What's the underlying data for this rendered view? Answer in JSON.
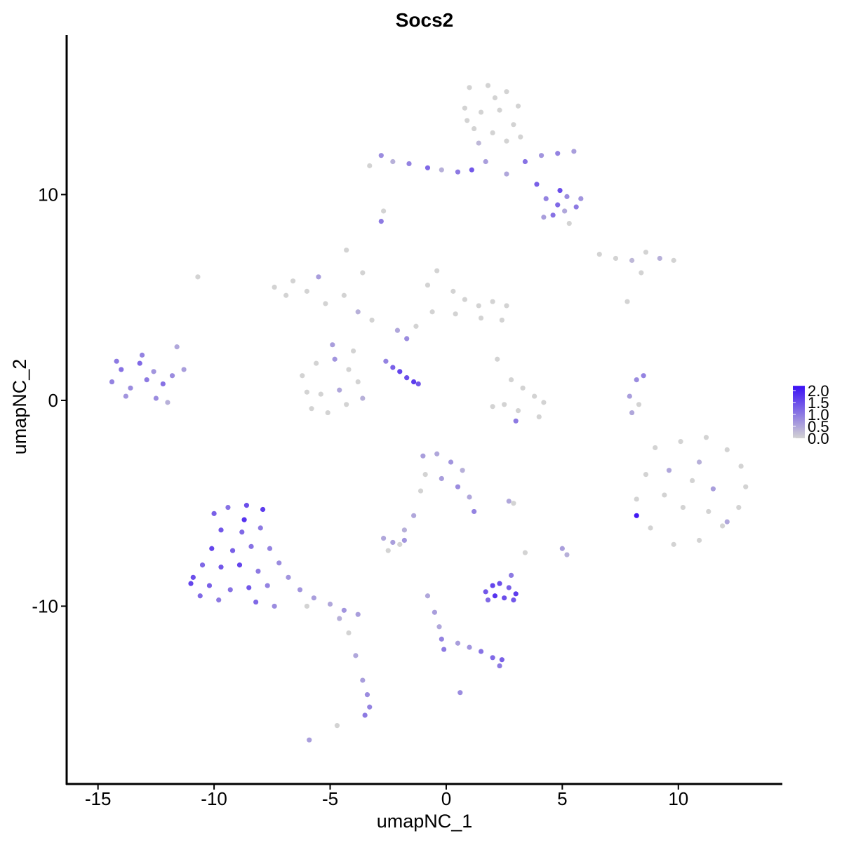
{
  "chart_data": {
    "type": "scatter",
    "title": "Socs2",
    "x_label": "umapNC_1",
    "y_label": "umapNC_2",
    "xlim": [
      -16.35,
      14.48
    ],
    "ylim": [
      -18.64,
      17.75
    ],
    "xticks": [
      -15,
      -10,
      -5,
      0,
      5,
      10
    ],
    "yticks": [
      -10,
      0,
      10
    ],
    "color_low": "#d3d3d3",
    "color_high": "#3a10f5",
    "colorbar_lim": [
      0,
      2.2
    ],
    "colorbar_ticks": [
      {
        "value": 0,
        "label": "0.0"
      },
      {
        "value": 0.5,
        "label": "0.5"
      },
      {
        "value": 1,
        "label": "1.0"
      },
      {
        "value": 1.5,
        "label": "1.5"
      },
      {
        "value": 2,
        "label": "2.0"
      }
    ],
    "x": [
      1.0,
      1.8,
      2.6,
      3.1,
      0.8,
      1.5,
      2.3,
      2.9,
      1.2,
      2.0,
      1.4,
      2.6,
      3.2,
      0.9,
      2.1,
      -3.3,
      -2.8,
      -2.3,
      -1.6,
      -0.8,
      -0.2,
      0.5,
      1.1,
      1.7,
      2.6,
      3.4,
      4.1,
      4.8,
      5.5,
      3.9,
      4.3,
      4.8,
      5.2,
      5.6,
      5.8,
      4.6,
      5.1,
      5.3,
      4.2,
      4.9,
      -2.8,
      -2.7,
      6.6,
      7.3,
      8.0,
      8.6,
      9.2,
      9.8,
      8.4,
      7.8,
      -0.8,
      -0.4,
      0.3,
      0.8,
      1.4,
      2.0,
      2.6,
      2.4,
      1.5,
      0.4,
      -0.6,
      -1.3,
      -2.1,
      -3.2,
      -3.8,
      -3.6,
      -4.4,
      -5.2,
      -6.0,
      -6.6,
      -5.5,
      -7.4,
      -4.3,
      -6.9,
      -1.7,
      -6.2,
      -5.6,
      -4.8,
      -4.2,
      -3.8,
      -4.6,
      -5.4,
      -6.0,
      -5.1,
      -4.3,
      -3.6,
      -5.8,
      -4.9,
      -4.0,
      -2.6,
      -2.3,
      -2.0,
      -1.7,
      -1.4,
      -1.2,
      -14.4,
      -14.0,
      -13.6,
      -13.2,
      -12.9,
      -12.6,
      -12.2,
      -11.8,
      -11.3,
      -11.6,
      -13.1,
      -13.8,
      -12.5,
      -12.0,
      -14.2,
      -10.7,
      2.2,
      2.8,
      3.3,
      3.8,
      3.1,
      2.5,
      2.0,
      4.0,
      3.0,
      4.2,
      8.2,
      7.9,
      8.0,
      8.3,
      8.5,
      9.0,
      10.1,
      11.2,
      12.1,
      12.7,
      12.9,
      12.6,
      11.9,
      10.9,
      9.8,
      8.8,
      8.2,
      8.6,
      9.6,
      10.6,
      11.5,
      10.2,
      11.3,
      9.4,
      8.2,
      10.9,
      12.1,
      -10.0,
      -9.4,
      -8.6,
      -7.9,
      -9.7,
      -8.8,
      -8.0,
      -10.1,
      -9.2,
      -8.4,
      -7.6,
      -10.5,
      -9.7,
      -8.9,
      -8.1,
      -7.2,
      -10.9,
      -10.2,
      -9.3,
      -8.5,
      -7.7,
      -6.8,
      -10.6,
      -9.8,
      -8.2,
      -7.4,
      -6.3,
      -5.7,
      -5.0,
      -4.4,
      -3.8,
      -4.6,
      -6.0,
      -11.0,
      -8.7,
      -4.2,
      -3.9,
      -3.6,
      -3.4,
      -3.3,
      -3.5,
      -4.7,
      -5.9,
      -1.0,
      -0.4,
      0.2,
      0.7,
      -0.9,
      -0.2,
      0.5,
      1.0,
      1.2,
      -1.1,
      -1.4,
      -1.8,
      -2.7,
      -2.3,
      -2.0,
      -1.8,
      -2.5,
      2.7,
      2.9,
      5.0,
      5.2,
      3.4,
      1.7,
      2.0,
      2.3,
      2.7,
      3.0,
      2.5,
      2.1,
      1.8,
      2.9,
      2.8,
      -0.8,
      -0.5,
      -0.3,
      -0.2,
      -0.1,
      0.5,
      1.0,
      1.5,
      2.0,
      2.4,
      2.3,
      0.6
    ],
    "y": [
      15.2,
      15.3,
      15.0,
      14.3,
      14.2,
      14.0,
      14.1,
      13.4,
      13.2,
      13.0,
      12.5,
      12.6,
      12.8,
      13.6,
      14.7,
      11.4,
      11.9,
      11.6,
      11.5,
      11.3,
      11.2,
      11.1,
      11.2,
      11.6,
      11.0,
      11.6,
      11.9,
      12.0,
      12.1,
      10.5,
      9.8,
      9.5,
      9.9,
      9.4,
      9.8,
      9.0,
      9.2,
      8.6,
      8.9,
      10.2,
      8.7,
      9.2,
      7.1,
      6.9,
      6.8,
      7.2,
      6.9,
      6.8,
      6.2,
      4.8,
      5.6,
      6.3,
      5.3,
      4.9,
      4.6,
      4.8,
      4.6,
      3.9,
      4.0,
      4.2,
      4.3,
      3.6,
      3.4,
      3.9,
      4.3,
      6.2,
      5.1,
      4.7,
      5.3,
      5.8,
      6.0,
      5.5,
      7.3,
      5.1,
      3.0,
      1.2,
      1.8,
      2.0,
      1.5,
      0.9,
      0.5,
      0.3,
      0.4,
      -0.6,
      -0.2,
      0.1,
      -0.4,
      2.7,
      2.4,
      1.9,
      1.6,
      1.4,
      1.1,
      0.9,
      0.8,
      0.9,
      1.5,
      0.6,
      1.8,
      1.0,
      1.4,
      0.8,
      1.2,
      1.5,
      2.6,
      2.2,
      0.2,
      0.1,
      -0.1,
      1.9,
      6.0,
      2.0,
      1.0,
      0.6,
      0.2,
      -0.5,
      -0.2,
      -0.3,
      -0.8,
      -1.0,
      -0.1,
      1.0,
      0.2,
      -0.6,
      -0.2,
      1.2,
      -2.3,
      -2.0,
      -1.8,
      -2.4,
      -3.2,
      -4.2,
      -5.2,
      -6.1,
      -6.8,
      -7.0,
      -6.2,
      -4.8,
      -3.6,
      -3.4,
      -3.9,
      -4.3,
      -5.2,
      -5.4,
      -4.6,
      -5.6,
      -3.0,
      -5.9,
      -5.5,
      -5.2,
      -5.1,
      -5.3,
      -6.3,
      -6.4,
      -6.2,
      -7.2,
      -7.3,
      -7.1,
      -7.2,
      -8.0,
      -8.1,
      -8.0,
      -8.3,
      -7.9,
      -8.6,
      -9.0,
      -9.2,
      -9.1,
      -9.0,
      -8.6,
      -9.5,
      -9.7,
      -9.8,
      -10.0,
      -9.2,
      -9.6,
      -9.9,
      -10.2,
      -10.4,
      -10.6,
      -10.0,
      -8.9,
      -5.8,
      -11.3,
      -12.4,
      -13.6,
      -14.3,
      -14.9,
      -15.3,
      -15.8,
      -16.5,
      -2.7,
      -2.6,
      -3.0,
      -3.4,
      -3.6,
      -3.8,
      -4.2,
      -4.7,
      -5.4,
      -4.4,
      -5.6,
      -6.3,
      -6.7,
      -6.9,
      -7.0,
      -6.8,
      -7.3,
      -4.9,
      -5.0,
      -7.2,
      -7.5,
      -7.4,
      -9.3,
      -9.0,
      -8.9,
      -9.1,
      -9.4,
      -9.6,
      -9.5,
      -9.7,
      -9.7,
      -8.5,
      -9.5,
      -10.3,
      -11.0,
      -11.6,
      -12.1,
      -11.8,
      -12.0,
      -12.2,
      -12.5,
      -12.6,
      -12.9,
      -14.2
    ],
    "values": [
      0,
      0,
      0,
      0,
      0,
      0,
      0,
      0,
      0,
      0,
      0.3,
      0,
      0,
      0,
      0,
      0,
      0.8,
      0.4,
      0.9,
      1.2,
      0.4,
      1.0,
      1.4,
      0.6,
      0.5,
      1.1,
      0.7,
      0.9,
      0.6,
      1.3,
      0.9,
      1.2,
      0.8,
      1.0,
      0.7,
      1.1,
      0.5,
      0,
      0.6,
      1.5,
      1.0,
      0,
      0,
      0,
      0.3,
      0,
      0.4,
      0,
      0,
      0,
      0,
      0,
      0,
      0,
      0,
      0,
      0,
      0,
      0,
      0,
      0,
      0,
      0.5,
      0,
      0.4,
      0,
      0,
      0,
      0,
      0,
      0.6,
      0,
      0,
      0,
      0.8,
      0,
      0,
      0.7,
      0,
      0,
      0.5,
      0,
      0,
      0,
      0,
      0.4,
      0,
      0.6,
      0,
      0.9,
      1.3,
      1.6,
      1.5,
      1.7,
      1.4,
      0.9,
      1.1,
      0.8,
      1.2,
      1.0,
      0.7,
      1.1,
      0.8,
      0.6,
      0.5,
      0.9,
      0.7,
      0.8,
      0.4,
      1.0,
      0,
      0,
      0,
      0,
      0,
      0,
      0,
      0,
      0,
      1.0,
      0,
      0.8,
      0.6,
      0.5,
      0,
      0.9,
      0,
      0,
      0,
      0,
      0,
      0,
      0,
      0,
      0,
      0,
      0,
      0,
      0,
      0.5,
      0,
      0.6,
      0,
      0,
      0,
      2.1,
      0.4,
      0.5,
      1.3,
      1.1,
      1.5,
      1.7,
      1.4,
      1.2,
      1.0,
      1.6,
      1.3,
      1.1,
      0.9,
      1.2,
      1.4,
      1.6,
      1.0,
      0.8,
      1.5,
      1.3,
      1.1,
      1.4,
      0.9,
      0.7,
      1.2,
      1.0,
      1.2,
      0.8,
      0.7,
      0.6,
      0.5,
      0.7,
      0.6,
      0.4,
      0,
      1.6,
      1.8,
      0,
      0.5,
      0.6,
      0.8,
      0.9,
      1.0,
      0,
      0.6,
      0.6,
      0.5,
      0.7,
      0.4,
      0,
      0.6,
      0.8,
      0.5,
      0.9,
      0,
      0.5,
      0.4,
      0.5,
      0.6,
      0,
      0.7,
      0,
      0.5,
      0,
      0.6,
      0.4,
      0,
      1.4,
      1.6,
      1.5,
      1.3,
      1.7,
      1.5,
      1.8,
      1.2,
      1.4,
      1.0,
      0.5,
      0.6,
      0.5,
      0.9,
      1.0,
      0.6,
      0.7,
      1.1,
      1.2,
      1.3,
      1.0,
      0.8
    ]
  }
}
